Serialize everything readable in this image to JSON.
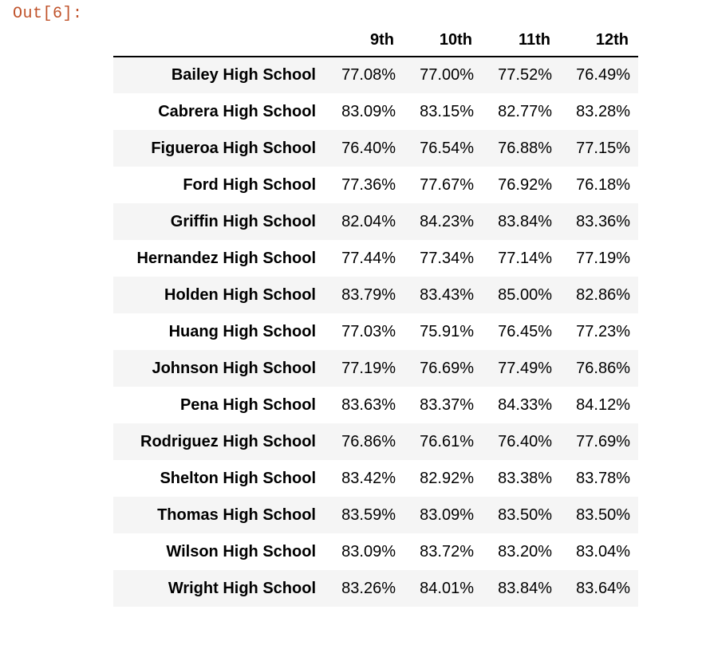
{
  "prompt": "Out[6]:",
  "table": {
    "columns": [
      "",
      "9th",
      "10th",
      "11th",
      "12th"
    ],
    "rows": [
      {
        "school": "Bailey High School",
        "values": [
          "77.08%",
          "77.00%",
          "77.52%",
          "76.49%"
        ]
      },
      {
        "school": "Cabrera High School",
        "values": [
          "83.09%",
          "83.15%",
          "82.77%",
          "83.28%"
        ]
      },
      {
        "school": "Figueroa High School",
        "values": [
          "76.40%",
          "76.54%",
          "76.88%",
          "77.15%"
        ]
      },
      {
        "school": "Ford High School",
        "values": [
          "77.36%",
          "77.67%",
          "76.92%",
          "76.18%"
        ]
      },
      {
        "school": "Griffin High School",
        "values": [
          "82.04%",
          "84.23%",
          "83.84%",
          "83.36%"
        ]
      },
      {
        "school": "Hernandez High School",
        "values": [
          "77.44%",
          "77.34%",
          "77.14%",
          "77.19%"
        ]
      },
      {
        "school": "Holden High School",
        "values": [
          "83.79%",
          "83.43%",
          "85.00%",
          "82.86%"
        ]
      },
      {
        "school": "Huang High School",
        "values": [
          "77.03%",
          "75.91%",
          "76.45%",
          "77.23%"
        ]
      },
      {
        "school": "Johnson High School",
        "values": [
          "77.19%",
          "76.69%",
          "77.49%",
          "76.86%"
        ]
      },
      {
        "school": "Pena High School",
        "values": [
          "83.63%",
          "83.37%",
          "84.33%",
          "84.12%"
        ]
      },
      {
        "school": "Rodriguez High School",
        "values": [
          "76.86%",
          "76.61%",
          "76.40%",
          "77.69%"
        ]
      },
      {
        "school": "Shelton High School",
        "values": [
          "83.42%",
          "82.92%",
          "83.38%",
          "83.78%"
        ]
      },
      {
        "school": "Thomas High School",
        "values": [
          "83.59%",
          "83.09%",
          "83.50%",
          "83.50%"
        ]
      },
      {
        "school": "Wilson High School",
        "values": [
          "83.09%",
          "83.72%",
          "83.20%",
          "83.04%"
        ]
      },
      {
        "school": "Wright High School",
        "values": [
          "83.26%",
          "84.01%",
          "83.84%",
          "83.64%"
        ]
      }
    ]
  },
  "colors": {
    "prompt": "#c0532b",
    "stripe": "#f5f5f5",
    "text": "#000000"
  }
}
